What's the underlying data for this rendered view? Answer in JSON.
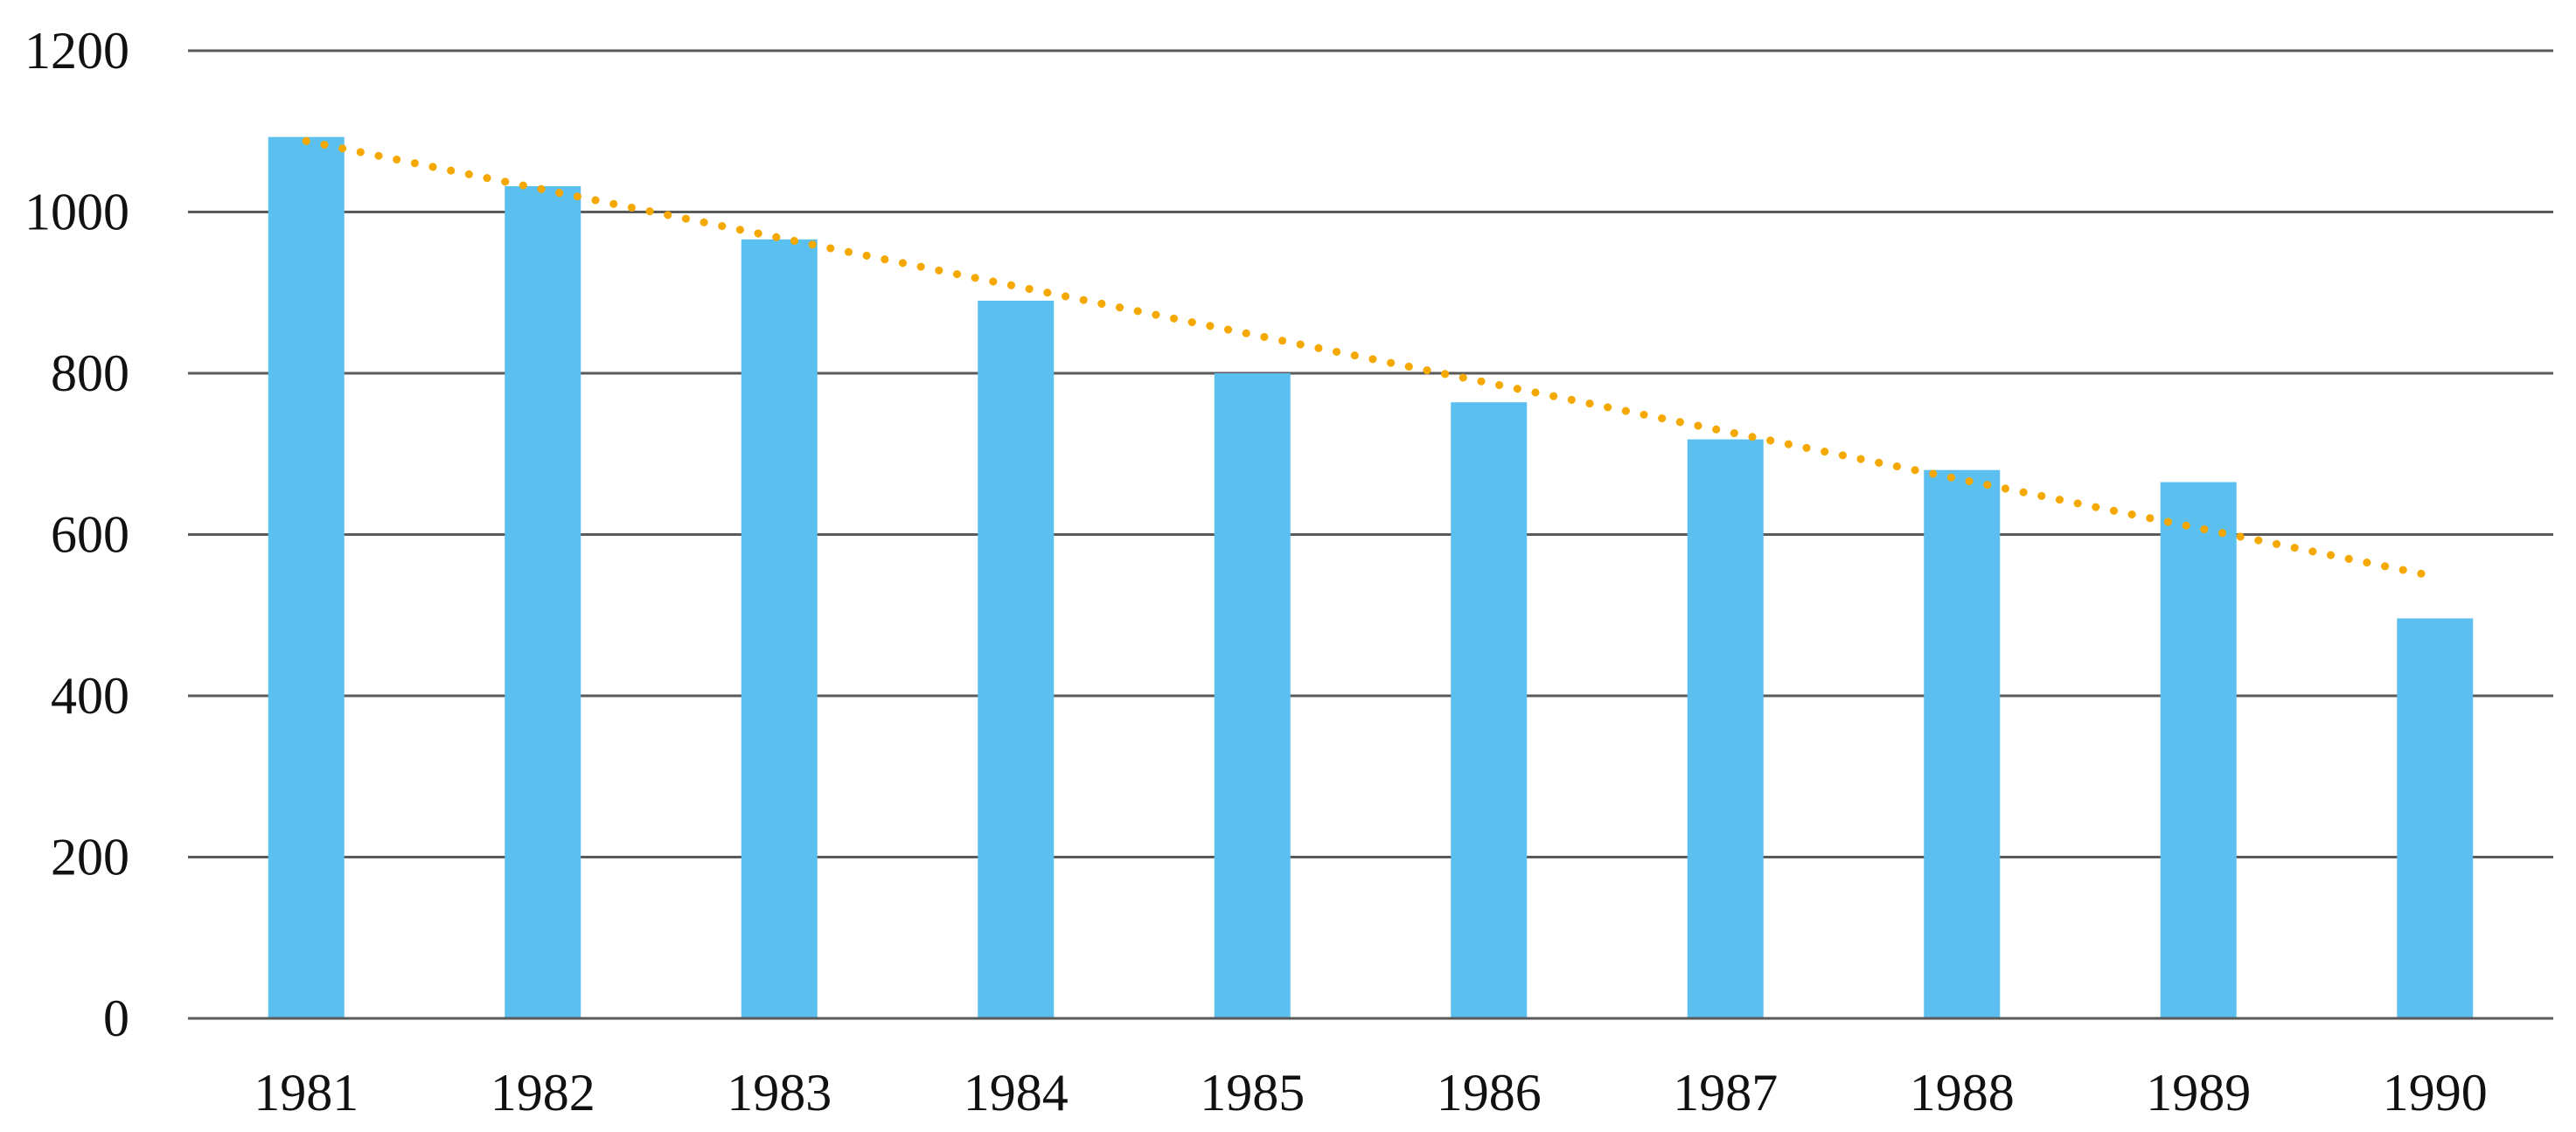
{
  "chart_data": {
    "type": "bar",
    "title": "",
    "xlabel": "",
    "ylabel": "",
    "categories": [
      "1981",
      "1982",
      "1983",
      "1984",
      "1985",
      "1986",
      "1987",
      "1988",
      "1989",
      "1990"
    ],
    "values": [
      1093,
      1032,
      966,
      890,
      800,
      764,
      718,
      680,
      665,
      496
    ],
    "ylim": [
      0,
      1200
    ],
    "yticks": [
      0,
      200,
      400,
      600,
      800,
      1000,
      1200
    ],
    "ytick_labels": [
      "0",
      "200",
      "400",
      "600",
      "800",
      "1000",
      "1200"
    ],
    "grid": true,
    "legend": "none",
    "trendline": {
      "type": "linear",
      "style": "dotted",
      "start": 1088,
      "end": 548
    },
    "colors": {
      "bar": "#5bc0f0",
      "trendline": "#f5a800",
      "grid": "#5a5a5a",
      "axis": "#5a5a5a",
      "text": "#111111"
    }
  }
}
